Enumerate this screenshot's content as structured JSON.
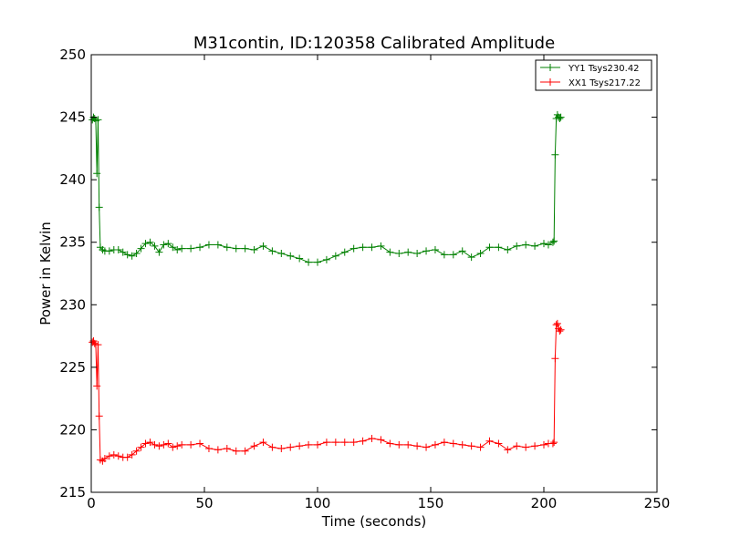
{
  "chart_data": {
    "type": "line",
    "title": "M31contin, ID:120358 Calibrated Amplitude",
    "xlabel": "Time (seconds)",
    "ylabel": "Power in Kelvin",
    "xlim": [
      0,
      250
    ],
    "ylim": [
      215,
      250
    ],
    "xticks": [
      0,
      50,
      100,
      150,
      200,
      250
    ],
    "yticks": [
      215,
      220,
      225,
      230,
      235,
      240,
      245,
      250
    ],
    "grid": false,
    "legend_position": "top-right",
    "marker": "+",
    "series": [
      {
        "name": "YY1 Tsys230.42",
        "color": "#008000",
        "x": [
          0.5,
          1,
          1.5,
          2,
          2.5,
          3,
          3.5,
          4,
          5,
          6,
          8,
          10,
          12,
          14,
          16,
          18,
          20,
          22,
          24,
          26,
          28,
          30,
          32,
          34,
          36,
          38,
          40,
          44,
          48,
          52,
          56,
          60,
          64,
          68,
          72,
          76,
          80,
          84,
          88,
          92,
          96,
          100,
          104,
          108,
          112,
          116,
          120,
          124,
          128,
          132,
          136,
          140,
          144,
          148,
          152,
          156,
          160,
          164,
          168,
          172,
          176,
          180,
          184,
          188,
          192,
          196,
          200,
          202,
          204,
          204.5,
          205,
          205.5,
          206,
          206.5,
          207,
          207.5
        ],
        "y": [
          244.8,
          245.0,
          244.9,
          244.7,
          240.5,
          244.8,
          237.8,
          234.6,
          234.4,
          234.3,
          234.3,
          234.4,
          234.4,
          234.2,
          234.0,
          233.9,
          234.1,
          234.5,
          234.9,
          235.0,
          234.7,
          234.2,
          234.8,
          234.9,
          234.6,
          234.4,
          234.5,
          234.5,
          234.6,
          234.8,
          234.8,
          234.6,
          234.5,
          234.5,
          234.4,
          234.7,
          234.3,
          234.1,
          233.9,
          233.7,
          233.4,
          233.4,
          233.6,
          233.9,
          234.2,
          234.5,
          234.6,
          234.6,
          234.7,
          234.2,
          234.1,
          234.2,
          234.1,
          234.3,
          234.4,
          234.0,
          234.0,
          234.3,
          233.8,
          234.1,
          234.6,
          234.6,
          234.4,
          234.7,
          234.8,
          234.7,
          234.9,
          234.8,
          235.0,
          235.1,
          242.0,
          244.9,
          245.2,
          245.0,
          244.9,
          245.0
        ]
      },
      {
        "name": "XX1 Tsys217.22",
        "color": "#ff0000",
        "x": [
          0.5,
          1,
          1.5,
          2,
          2.5,
          3,
          3.5,
          4,
          5,
          6,
          8,
          10,
          12,
          14,
          16,
          18,
          20,
          22,
          24,
          26,
          28,
          30,
          32,
          34,
          36,
          38,
          40,
          44,
          48,
          52,
          56,
          60,
          64,
          68,
          72,
          76,
          80,
          84,
          88,
          92,
          96,
          100,
          104,
          108,
          112,
          116,
          120,
          124,
          128,
          132,
          136,
          140,
          144,
          148,
          152,
          156,
          160,
          164,
          168,
          172,
          176,
          180,
          184,
          188,
          192,
          196,
          200,
          202,
          204,
          204.5,
          205,
          205.5,
          206,
          206.5,
          207,
          207.5
        ],
        "y": [
          227.0,
          227.1,
          226.9,
          226.8,
          223.5,
          226.8,
          221.1,
          217.6,
          217.5,
          217.7,
          217.9,
          218.0,
          217.9,
          217.8,
          217.8,
          218.0,
          218.3,
          218.6,
          218.9,
          219.0,
          218.8,
          218.7,
          218.8,
          218.9,
          218.6,
          218.7,
          218.8,
          218.8,
          218.9,
          218.5,
          218.4,
          218.5,
          218.3,
          218.3,
          218.7,
          219.0,
          218.6,
          218.5,
          218.6,
          218.7,
          218.8,
          218.8,
          219.0,
          219.0,
          219.0,
          219.0,
          219.1,
          219.3,
          219.2,
          218.9,
          218.8,
          218.8,
          218.7,
          218.6,
          218.8,
          219.0,
          218.9,
          218.8,
          218.7,
          218.6,
          219.1,
          218.9,
          218.4,
          218.7,
          218.6,
          218.7,
          218.8,
          218.9,
          218.9,
          219.0,
          225.7,
          228.4,
          228.5,
          228.1,
          227.9,
          228.0
        ]
      }
    ]
  }
}
